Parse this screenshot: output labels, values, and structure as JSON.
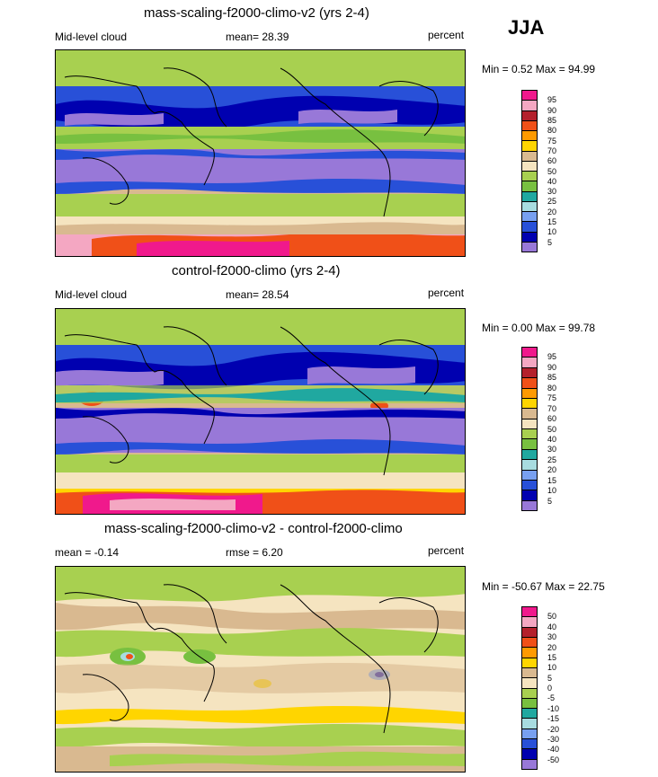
{
  "season": "JJA",
  "panels": [
    {
      "title": "mass-scaling-f2000-climo-v2 (yrs 2-4)",
      "left_label": "Mid-level cloud",
      "center_label": "mean=  28.39",
      "right_label": "percent",
      "minmax": "Min =   0.52 Max =  94.99",
      "levels": [
        "95",
        "90",
        "85",
        "80",
        "75",
        "70",
        "60",
        "50",
        "40",
        "30",
        "25",
        "20",
        "15",
        "10",
        "5"
      ],
      "colors": [
        "#f0198c",
        "#f4a7c2",
        "#b4202c",
        "#f05018",
        "#ff9a00",
        "#ffd500",
        "#d9b990",
        "#f5e4c0",
        "#a8d050",
        "#78c040",
        "#20a8a0",
        "#a8dce0",
        "#78a0f0",
        "#2850d8",
        "#0000b0",
        "#9878d8"
      ]
    },
    {
      "title": "control-f2000-climo (yrs 2-4)",
      "left_label": "Mid-level cloud",
      "center_label": "mean=  28.54",
      "right_label": "percent",
      "minmax": "Min =   0.00 Max =  99.78",
      "levels": [
        "95",
        "90",
        "85",
        "80",
        "75",
        "70",
        "60",
        "50",
        "40",
        "30",
        "25",
        "20",
        "15",
        "10",
        "5"
      ],
      "colors": [
        "#f0198c",
        "#f4a7c2",
        "#b4202c",
        "#f05018",
        "#ff9a00",
        "#ffd500",
        "#d9b990",
        "#f5e4c0",
        "#a8d050",
        "#78c040",
        "#20a8a0",
        "#a8dce0",
        "#78a0f0",
        "#2850d8",
        "#0000b0",
        "#9878d8"
      ]
    },
    {
      "title": "mass-scaling-f2000-climo-v2 - control-f2000-climo",
      "left_label": "mean =  -0.14",
      "center_label": "rmse =   6.20",
      "right_label": "percent",
      "minmax": "Min = -50.67 Max =  22.75",
      "levels": [
        "50",
        "40",
        "30",
        "20",
        "15",
        "10",
        "5",
        "0",
        "-5",
        "-10",
        "-15",
        "-20",
        "-30",
        "-40",
        "-50"
      ],
      "colors": [
        "#f0198c",
        "#f4a7c2",
        "#b4202c",
        "#f05018",
        "#ff9a00",
        "#ffd500",
        "#d9b990",
        "#f5e4c0",
        "#a8d050",
        "#78c040",
        "#20a8a0",
        "#a8dce0",
        "#78a0f0",
        "#2850d8",
        "#0000b0",
        "#9878d8"
      ]
    }
  ]
}
